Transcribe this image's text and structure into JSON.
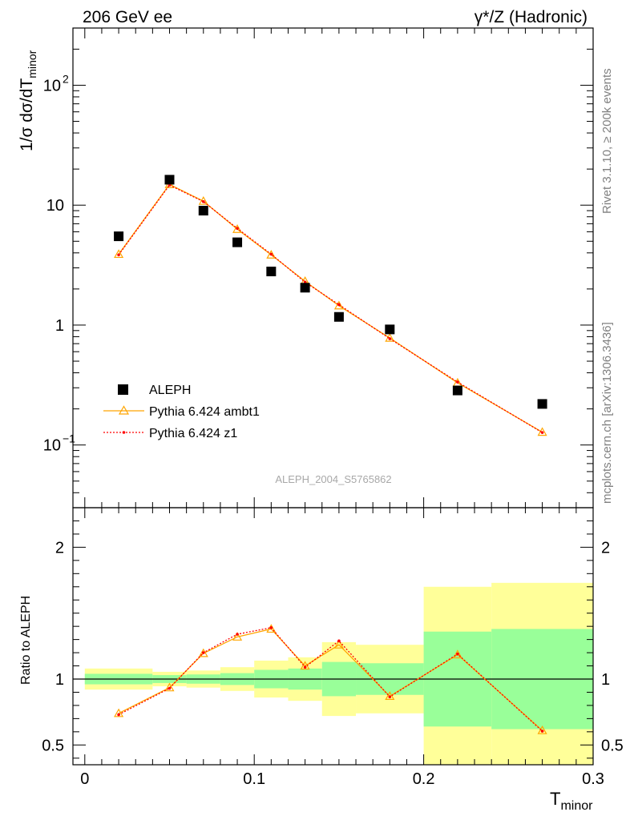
{
  "header": {
    "left_title": "206 GeV ee",
    "right_title_prefix": "γ*/Z ",
    "right_title_suffix": "(Hadronic)"
  },
  "side_labels": {
    "rivet": "Rivet 3.1.10, ≥ 200k events",
    "mcplots": "mcplots.cern.ch [arXiv:1306.3436]"
  },
  "analysis_label": "ALEPH_2004_S5765862",
  "ylabel_ratio": "Ratio to ALEPH",
  "ylabel_main_parts": {
    "pre": "1/σ  dσ/dT",
    "sub": "minor"
  },
  "xlabel_parts": {
    "main": "T",
    "sub": "minor"
  },
  "chart_data": {
    "type": "scatter",
    "xlim": [
      -0.007,
      0.3
    ],
    "main_panel": {
      "yscale": "log",
      "ylim": [
        0.03,
        300
      ],
      "yticks": [
        {
          "value": 0.1,
          "label": "10",
          "exp": "−1"
        },
        {
          "value": 1,
          "label": "1",
          "exp": ""
        },
        {
          "value": 10,
          "label": "10",
          "exp": ""
        },
        {
          "value": 100,
          "label": "10",
          "exp": "2"
        }
      ]
    },
    "ratio_panel": {
      "ylim": [
        0.35,
        2.3
      ],
      "reference_line": 1,
      "yticks": [
        {
          "value": 0.5,
          "label": "0.5"
        },
        {
          "value": 1,
          "label": "1"
        },
        {
          "value": 2,
          "label": "2"
        }
      ]
    },
    "xticks": [
      {
        "value": 0,
        "label": "0"
      },
      {
        "value": 0.1,
        "label": "0.1"
      },
      {
        "value": 0.2,
        "label": "0.2"
      },
      {
        "value": 0.3,
        "label": "0.3"
      }
    ],
    "legend": [
      "ALEPH",
      "Pythia 6.424 ambt1",
      "Pythia 6.424 z1"
    ],
    "data": {
      "name": "ALEPH",
      "x": [
        0.02,
        0.05,
        0.07,
        0.09,
        0.11,
        0.13,
        0.15,
        0.18,
        0.22,
        0.27
      ],
      "y": [
        5.5,
        16.3,
        9.0,
        4.9,
        2.8,
        2.05,
        1.17,
        0.92,
        0.285,
        0.22
      ]
    },
    "bins": [
      {
        "lo": 0.0,
        "hi": 0.04,
        "inner": [
          0.96,
          1.04
        ],
        "outer": [
          0.92,
          1.08
        ]
      },
      {
        "lo": 0.04,
        "hi": 0.06,
        "inner": [
          0.97,
          1.03
        ],
        "outer": [
          0.945,
          1.055
        ]
      },
      {
        "lo": 0.06,
        "hi": 0.08,
        "inner": [
          0.965,
          1.035
        ],
        "outer": [
          0.935,
          1.065
        ]
      },
      {
        "lo": 0.08,
        "hi": 0.1,
        "inner": [
          0.955,
          1.045
        ],
        "outer": [
          0.91,
          1.09
        ]
      },
      {
        "lo": 0.1,
        "hi": 0.12,
        "inner": [
          0.93,
          1.07
        ],
        "outer": [
          0.86,
          1.14
        ]
      },
      {
        "lo": 0.12,
        "hi": 0.14,
        "inner": [
          0.92,
          1.08
        ],
        "outer": [
          0.835,
          1.165
        ]
      },
      {
        "lo": 0.14,
        "hi": 0.16,
        "inner": [
          0.87,
          1.13
        ],
        "outer": [
          0.72,
          1.28
        ]
      },
      {
        "lo": 0.16,
        "hi": 0.2,
        "inner": [
          0.88,
          1.12
        ],
        "outer": [
          0.74,
          1.26
        ]
      },
      {
        "lo": 0.2,
        "hi": 0.24,
        "inner": [
          0.64,
          1.36
        ],
        "outer": [
          0.3,
          1.7
        ]
      },
      {
        "lo": 0.24,
        "hi": 0.3,
        "inner": [
          0.62,
          1.38
        ],
        "outer": [
          0.3,
          1.73
        ]
      }
    ],
    "band_colors": {
      "inner": "#99ff99",
      "outer": "#ffff99"
    },
    "series": [
      {
        "name": "Pythia 6.424 ambt1",
        "color": "#ffa500",
        "marker": "triangle",
        "x": [
          0.02,
          0.05,
          0.07,
          0.09,
          0.11,
          0.13,
          0.15,
          0.18,
          0.22,
          0.27
        ],
        "y": [
          3.9,
          14.9,
          10.8,
          6.3,
          3.85,
          2.32,
          1.45,
          0.78,
          0.33,
          0.128
        ],
        "ratio": [
          0.74,
          0.935,
          1.195,
          1.32,
          1.38,
          1.1,
          1.26,
          0.87,
          1.185,
          0.61
        ]
      },
      {
        "name": "Pythia 6.424 z1",
        "color": "#ff0000",
        "marker": "dot",
        "x": [
          0.02,
          0.05,
          0.07,
          0.09,
          0.11,
          0.13,
          0.15,
          0.18,
          0.22,
          0.27
        ],
        "y": [
          3.85,
          14.7,
          10.7,
          6.4,
          3.9,
          2.28,
          1.48,
          0.77,
          0.335,
          0.127
        ],
        "ratio": [
          0.73,
          0.93,
          1.2,
          1.34,
          1.39,
          1.09,
          1.29,
          0.865,
          1.19,
          0.605
        ]
      }
    ]
  }
}
